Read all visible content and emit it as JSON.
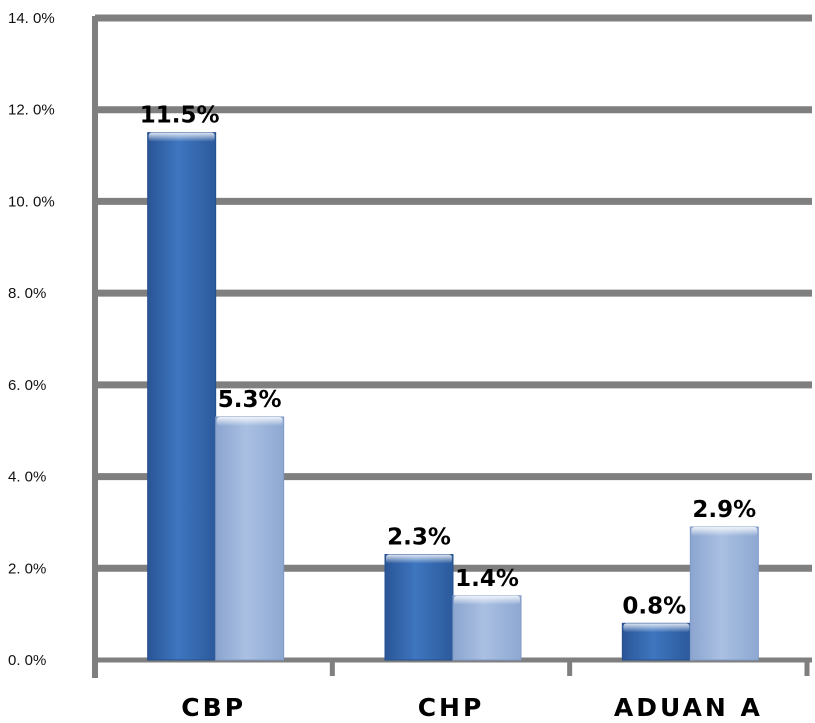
{
  "chart_data": {
    "type": "bar",
    "categories": [
      "CBP",
      "CHP",
      "ADUAN A"
    ],
    "series": [
      {
        "values": [
          11.5,
          2.3,
          0.8
        ],
        "labels": [
          "11.5%",
          "2.3%",
          "0.8%"
        ]
      },
      {
        "values": [
          5.3,
          1.4,
          2.9
        ],
        "labels": [
          "5.3%",
          "1.4%",
          "2.9%"
        ]
      }
    ],
    "ylim": [
      0,
      14
    ],
    "y_ticks": [
      {
        "value": 0,
        "label": "0. 0%"
      },
      {
        "value": 2,
        "label": "2. 0%"
      },
      {
        "value": 4,
        "label": "4. 0%"
      },
      {
        "value": 6,
        "label": "6. 0%"
      },
      {
        "value": 8,
        "label": "8. 0%"
      },
      {
        "value": 10,
        "label": "10. 0%"
      },
      {
        "value": 12,
        "label": "12. 0%"
      },
      {
        "value": 14,
        "label": "14. 0%"
      }
    ],
    "grid": true,
    "colors": {
      "series_1": "#3a6fb6",
      "series_2": "#9fb7dc",
      "grid": "#7f7f7f"
    }
  }
}
